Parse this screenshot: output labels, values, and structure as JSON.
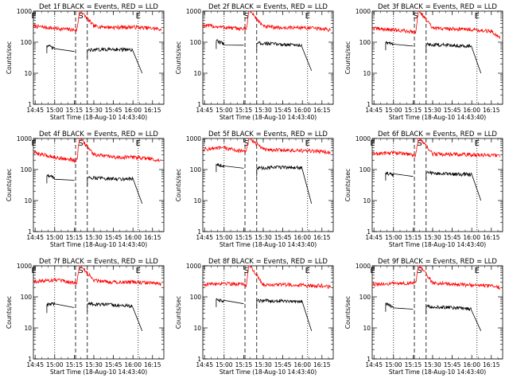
{
  "colors": {
    "background": "#ffffff",
    "axes": "#000000",
    "events_series": "#000000",
    "lld_series": "#ff0000"
  },
  "chart_data": [
    {
      "type": "line",
      "title": "Det 1f BLACK = Events, RED = LLD",
      "xlabel": "Start Time (18-Aug-10 14:43:40)",
      "ylabel": "Counts/sec",
      "y_scale": "log",
      "ylim": [
        1,
        1000
      ],
      "xlim": [
        "14:43:40",
        "16:23:40"
      ],
      "x_tick_labels": [
        "14:45",
        "15:00",
        "15:15",
        "15:30",
        "15:45",
        "16:00",
        "16:15"
      ],
      "y_tick_labels": [
        "1",
        "10",
        "100",
        "1000"
      ],
      "markers": [
        {
          "label": "E",
          "time": "14:44"
        },
        {
          "label": "S",
          "time": "15:20"
        },
        {
          "label": "E",
          "time": "16:04"
        }
      ],
      "vlines_dotted": [
        "15:00",
        "16:04"
      ],
      "vlines_dashed": [
        "15:16",
        "15:25"
      ],
      "series": [
        {
          "color": "red",
          "x": [
            "14:44",
            "15:00",
            "15:15",
            "15:17",
            "15:19",
            "15:20",
            "15:30",
            "15:45",
            "16:00",
            "16:15",
            "16:22"
          ],
          "values": [
            330,
            280,
            250,
            240,
            1000,
            1000,
            330,
            300,
            310,
            280,
            260
          ]
        },
        {
          "color": "black",
          "segments": [
            {
              "x": [
                "14:54",
                "15:00",
                "15:15"
              ],
              "values": [
                80,
                60,
                50
              ]
            },
            {
              "x": [
                "15:25",
                "15:45",
                "16:00",
                "16:07"
              ],
              "values": [
                55,
                60,
                55,
                10
              ]
            }
          ]
        }
      ]
    },
    {
      "type": "line",
      "title": "Det 2f BLACK = Events, RED = LLD",
      "xlabel": "Start Time (18-Aug-10 14:43:40)",
      "ylabel": "Counts/sec",
      "y_scale": "log",
      "ylim": [
        1,
        1000
      ],
      "xlim": [
        "14:43:40",
        "16:23:40"
      ],
      "x_tick_labels": [
        "14:45",
        "15:00",
        "15:15",
        "15:30",
        "15:45",
        "16:00",
        "16:15"
      ],
      "y_tick_labels": [
        "1",
        "10",
        "100",
        "1000"
      ],
      "markers": [
        {
          "label": "S",
          "time": "15:17"
        },
        {
          "label": "E",
          "time": "16:04"
        }
      ],
      "vlines_dotted": [
        "15:00",
        "16:04"
      ],
      "vlines_dashed": [
        "15:16",
        "15:25"
      ],
      "series": [
        {
          "color": "red",
          "x": [
            "14:44",
            "15:00",
            "15:15",
            "15:17",
            "15:19",
            "15:20",
            "15:30",
            "15:45",
            "16:00",
            "16:15",
            "16:22"
          ],
          "values": [
            350,
            300,
            270,
            260,
            1000,
            1000,
            320,
            290,
            300,
            270,
            250
          ]
        },
        {
          "color": "black",
          "segments": [
            {
              "x": [
                "14:54",
                "15:00",
                "15:15"
              ],
              "values": [
                110,
                90,
                80
              ]
            },
            {
              "x": [
                "15:25",
                "15:45",
                "16:00",
                "16:07"
              ],
              "values": [
                95,
                85,
                80,
                12
              ]
            }
          ]
        }
      ]
    },
    {
      "type": "line",
      "title": "Det 3f BLACK = Events, RED = LLD",
      "xlabel": "Start Time (18-Aug-10 14:43:40)",
      "ylabel": "Counts/sec",
      "y_scale": "log",
      "ylim": [
        1,
        1000
      ],
      "xlim": [
        "14:43:40",
        "16:23:40"
      ],
      "x_tick_labels": [
        "14:45",
        "15:00",
        "15:15",
        "15:30",
        "15:45",
        "16:00",
        "16:15"
      ],
      "y_tick_labels": [
        "1",
        "10",
        "100",
        "1000"
      ],
      "markers": [
        {
          "label": "S",
          "time": "15:17"
        },
        {
          "label": "E",
          "time": "16:04"
        }
      ],
      "vlines_dotted": [
        "15:00",
        "16:04"
      ],
      "vlines_dashed": [
        "15:16",
        "15:25"
      ],
      "series": [
        {
          "color": "red",
          "x": [
            "14:44",
            "15:00",
            "15:15",
            "15:17",
            "15:19",
            "15:20",
            "15:30",
            "15:45",
            "16:00",
            "16:15",
            "16:22"
          ],
          "values": [
            280,
            250,
            220,
            210,
            1000,
            1000,
            280,
            270,
            260,
            220,
            140
          ]
        },
        {
          "color": "black",
          "segments": [
            {
              "x": [
                "14:54",
                "15:00",
                "15:15"
              ],
              "values": [
                100,
                85,
                75
              ]
            },
            {
              "x": [
                "15:25",
                "15:45",
                "16:00",
                "16:07"
              ],
              "values": [
                85,
                80,
                75,
                10
              ]
            }
          ]
        }
      ]
    },
    {
      "type": "line",
      "title": "Det 4f BLACK = Events, RED = LLD",
      "xlabel": "Start Time (18-Aug-10 14:43:40)",
      "ylabel": "Counts/sec",
      "y_scale": "log",
      "ylim": [
        1,
        1000
      ],
      "xlim": [
        "14:43:40",
        "16:23:40"
      ],
      "x_tick_labels": [
        "14:45",
        "15:00",
        "15:15",
        "15:30",
        "15:45",
        "16:00",
        "16:15"
      ],
      "y_tick_labels": [
        "1",
        "10",
        "100",
        "1000"
      ],
      "markers": [
        {
          "label": "E",
          "time": "14:44"
        },
        {
          "label": "S",
          "time": "15:20"
        },
        {
          "label": "E",
          "time": "16:04"
        }
      ],
      "vlines_dotted": [
        "15:00",
        "16:04"
      ],
      "vlines_dashed": [
        "15:16",
        "15:25"
      ],
      "series": [
        {
          "color": "red",
          "x": [
            "14:44",
            "15:00",
            "15:15",
            "15:17",
            "15:19",
            "15:20",
            "15:30",
            "15:45",
            "16:00",
            "16:15",
            "16:22"
          ],
          "values": [
            350,
            250,
            200,
            200,
            1000,
            1000,
            300,
            250,
            250,
            220,
            180
          ]
        },
        {
          "color": "black",
          "segments": [
            {
              "x": [
                "14:54",
                "15:00",
                "15:15"
              ],
              "values": [
                65,
                55,
                45
              ]
            },
            {
              "x": [
                "15:25",
                "15:45",
                "16:00",
                "16:07"
              ],
              "values": [
                55,
                50,
                50,
                8
              ]
            }
          ]
        }
      ]
    },
    {
      "type": "line",
      "title": "Det 5f BLACK = Events, RED = LLD",
      "xlabel": "Start Time (18-Aug-10 14:43:40)",
      "ylabel": "Counts/sec",
      "y_scale": "log",
      "ylim": [
        1,
        1000
      ],
      "xlim": [
        "14:43:40",
        "16:23:40"
      ],
      "x_tick_labels": [
        "14:45",
        "15:00",
        "15:15",
        "15:30",
        "15:45",
        "16:00",
        "16:15"
      ],
      "y_tick_labels": [
        "1",
        "10",
        "100",
        "1000"
      ],
      "markers": [
        {
          "label": "S",
          "time": "15:17"
        },
        {
          "label": "E",
          "time": "16:04"
        }
      ],
      "vlines_dotted": [
        "15:00",
        "16:04"
      ],
      "vlines_dashed": [
        "15:16",
        "15:25"
      ],
      "series": [
        {
          "color": "red",
          "x": [
            "14:44",
            "15:00",
            "15:15",
            "15:17",
            "15:19",
            "15:20",
            "15:30",
            "15:45",
            "16:00",
            "16:15",
            "16:22"
          ],
          "values": [
            450,
            500,
            380,
            370,
            1000,
            1000,
            450,
            420,
            400,
            380,
            350
          ]
        },
        {
          "color": "black",
          "segments": [
            {
              "x": [
                "14:54",
                "15:00",
                "15:15"
              ],
              "values": [
                150,
                130,
                110
              ]
            },
            {
              "x": [
                "15:25",
                "15:45",
                "16:00",
                "16:07"
              ],
              "values": [
                110,
                120,
                115,
                8
              ]
            }
          ]
        }
      ]
    },
    {
      "type": "line",
      "title": "Det 6f BLACK = Events, RED = LLD",
      "xlabel": "Start Time (18-Aug-10 14:43:40)",
      "ylabel": "Counts/sec",
      "y_scale": "log",
      "ylim": [
        1,
        1000
      ],
      "xlim": [
        "14:43:40",
        "16:23:40"
      ],
      "x_tick_labels": [
        "14:45",
        "15:00",
        "15:15",
        "15:30",
        "15:45",
        "16:00",
        "16:15"
      ],
      "y_tick_labels": [
        "1",
        "10",
        "100",
        "1000"
      ],
      "markers": [
        {
          "label": "E",
          "time": "14:44"
        },
        {
          "label": "S",
          "time": "15:20"
        },
        {
          "label": "E",
          "time": "16:04"
        }
      ],
      "vlines_dotted": [
        "15:00",
        "16:04"
      ],
      "vlines_dashed": [
        "15:16",
        "15:25"
      ],
      "series": [
        {
          "color": "red",
          "x": [
            "14:44",
            "15:00",
            "15:15",
            "15:17",
            "15:19",
            "15:20",
            "15:30",
            "15:45",
            "16:00",
            "16:15",
            "16:22"
          ],
          "values": [
            320,
            350,
            300,
            290,
            1000,
            1000,
            320,
            310,
            300,
            290,
            280
          ]
        },
        {
          "color": "black",
          "segments": [
            {
              "x": [
                "14:54",
                "15:00",
                "15:15"
              ],
              "values": [
                80,
                65,
                60
              ]
            },
            {
              "x": [
                "15:25",
                "15:45",
                "16:00",
                "16:07"
              ],
              "values": [
                80,
                70,
                70,
                10
              ]
            }
          ]
        }
      ]
    },
    {
      "type": "line",
      "title": "Det 7f BLACK = Events, RED = LLD",
      "xlabel": "Start Time (18-Aug-10 14:43:40)",
      "ylabel": "Counts/sec",
      "y_scale": "log",
      "ylim": [
        1,
        1000
      ],
      "xlim": [
        "14:43:40",
        "16:23:40"
      ],
      "x_tick_labels": [
        "14:45",
        "15:00",
        "15:15",
        "15:30",
        "15:45",
        "16:00",
        "16:15"
      ],
      "y_tick_labels": [
        "1",
        "10",
        "100",
        "1000"
      ],
      "markers": [
        {
          "label": "E",
          "time": "14:44"
        },
        {
          "label": "S",
          "time": "15:20"
        },
        {
          "label": "E",
          "time": "16:04"
        }
      ],
      "vlines_dotted": [
        "15:00",
        "16:04"
      ],
      "vlines_dashed": [
        "15:16",
        "15:25"
      ],
      "series": [
        {
          "color": "red",
          "x": [
            "14:44",
            "15:00",
            "15:15",
            "15:17",
            "15:19",
            "15:20",
            "15:30",
            "15:45",
            "16:00",
            "16:15",
            "16:22"
          ],
          "values": [
            320,
            350,
            280,
            280,
            1000,
            1000,
            350,
            300,
            300,
            280,
            250
          ]
        },
        {
          "color": "black",
          "segments": [
            {
              "x": [
                "14:54",
                "15:00",
                "15:15"
              ],
              "values": [
                55,
                60,
                45
              ]
            },
            {
              "x": [
                "15:25",
                "15:45",
                "16:00",
                "16:07"
              ],
              "values": [
                60,
                55,
                50,
                8
              ]
            }
          ]
        }
      ]
    },
    {
      "type": "line",
      "title": "Det 8f BLACK = Events, RED = LLD",
      "xlabel": "Start Time (18-Aug-10 14:43:40)",
      "ylabel": "Counts/sec",
      "y_scale": "log",
      "ylim": [
        1,
        1000
      ],
      "xlim": [
        "14:43:40",
        "16:23:40"
      ],
      "x_tick_labels": [
        "14:45",
        "15:00",
        "15:15",
        "15:30",
        "15:45",
        "16:00",
        "16:15"
      ],
      "y_tick_labels": [
        "1",
        "10",
        "100",
        "1000"
      ],
      "markers": [
        {
          "label": "S",
          "time": "15:17"
        },
        {
          "label": "E",
          "time": "16:04"
        }
      ],
      "vlines_dotted": [
        "15:00",
        "16:04"
      ],
      "vlines_dashed": [
        "15:16",
        "15:25"
      ],
      "series": [
        {
          "color": "red",
          "x": [
            "14:44",
            "15:00",
            "15:15",
            "15:17",
            "15:19",
            "15:20",
            "15:30",
            "15:45",
            "16:00",
            "16:15",
            "16:22"
          ],
          "values": [
            250,
            280,
            250,
            240,
            1000,
            1000,
            250,
            250,
            240,
            230,
            200
          ]
        },
        {
          "color": "black",
          "segments": [
            {
              "x": [
                "14:54",
                "15:00",
                "15:15"
              ],
              "values": [
                85,
                70,
                60
              ]
            },
            {
              "x": [
                "15:25",
                "15:45",
                "16:00",
                "16:07"
              ],
              "values": [
                75,
                75,
                70,
                8
              ]
            }
          ]
        }
      ]
    },
    {
      "type": "line",
      "title": "Det 9f BLACK = Events, RED = LLD",
      "xlabel": "Start Time (18-Aug-10 14:43:40)",
      "ylabel": "Counts/sec",
      "y_scale": "log",
      "ylim": [
        1,
        1000
      ],
      "xlim": [
        "14:43:40",
        "16:23:40"
      ],
      "x_tick_labels": [
        "14:45",
        "15:00",
        "15:15",
        "15:30",
        "15:45",
        "16:00",
        "16:15"
      ],
      "y_tick_labels": [
        "1",
        "10",
        "100",
        "1000"
      ],
      "markers": [
        {
          "label": "E",
          "time": "14:44"
        },
        {
          "label": "S",
          "time": "15:20"
        },
        {
          "label": "E",
          "time": "16:04"
        }
      ],
      "vlines_dotted": [
        "15:00",
        "16:04"
      ],
      "vlines_dashed": [
        "15:16",
        "15:25"
      ],
      "series": [
        {
          "color": "red",
          "x": [
            "14:44",
            "15:00",
            "15:15",
            "15:17",
            "15:19",
            "15:20",
            "15:30",
            "15:45",
            "16:00",
            "16:15",
            "16:22"
          ],
          "values": [
            250,
            270,
            280,
            290,
            1000,
            1000,
            280,
            260,
            240,
            220,
            200
          ]
        },
        {
          "color": "black",
          "segments": [
            {
              "x": [
                "14:54",
                "15:00",
                "15:15"
              ],
              "values": [
                60,
                45,
                40
              ]
            },
            {
              "x": [
                "15:25",
                "15:45",
                "16:00",
                "16:07"
              ],
              "values": [
                50,
                45,
                40,
                8
              ]
            }
          ]
        }
      ]
    }
  ]
}
